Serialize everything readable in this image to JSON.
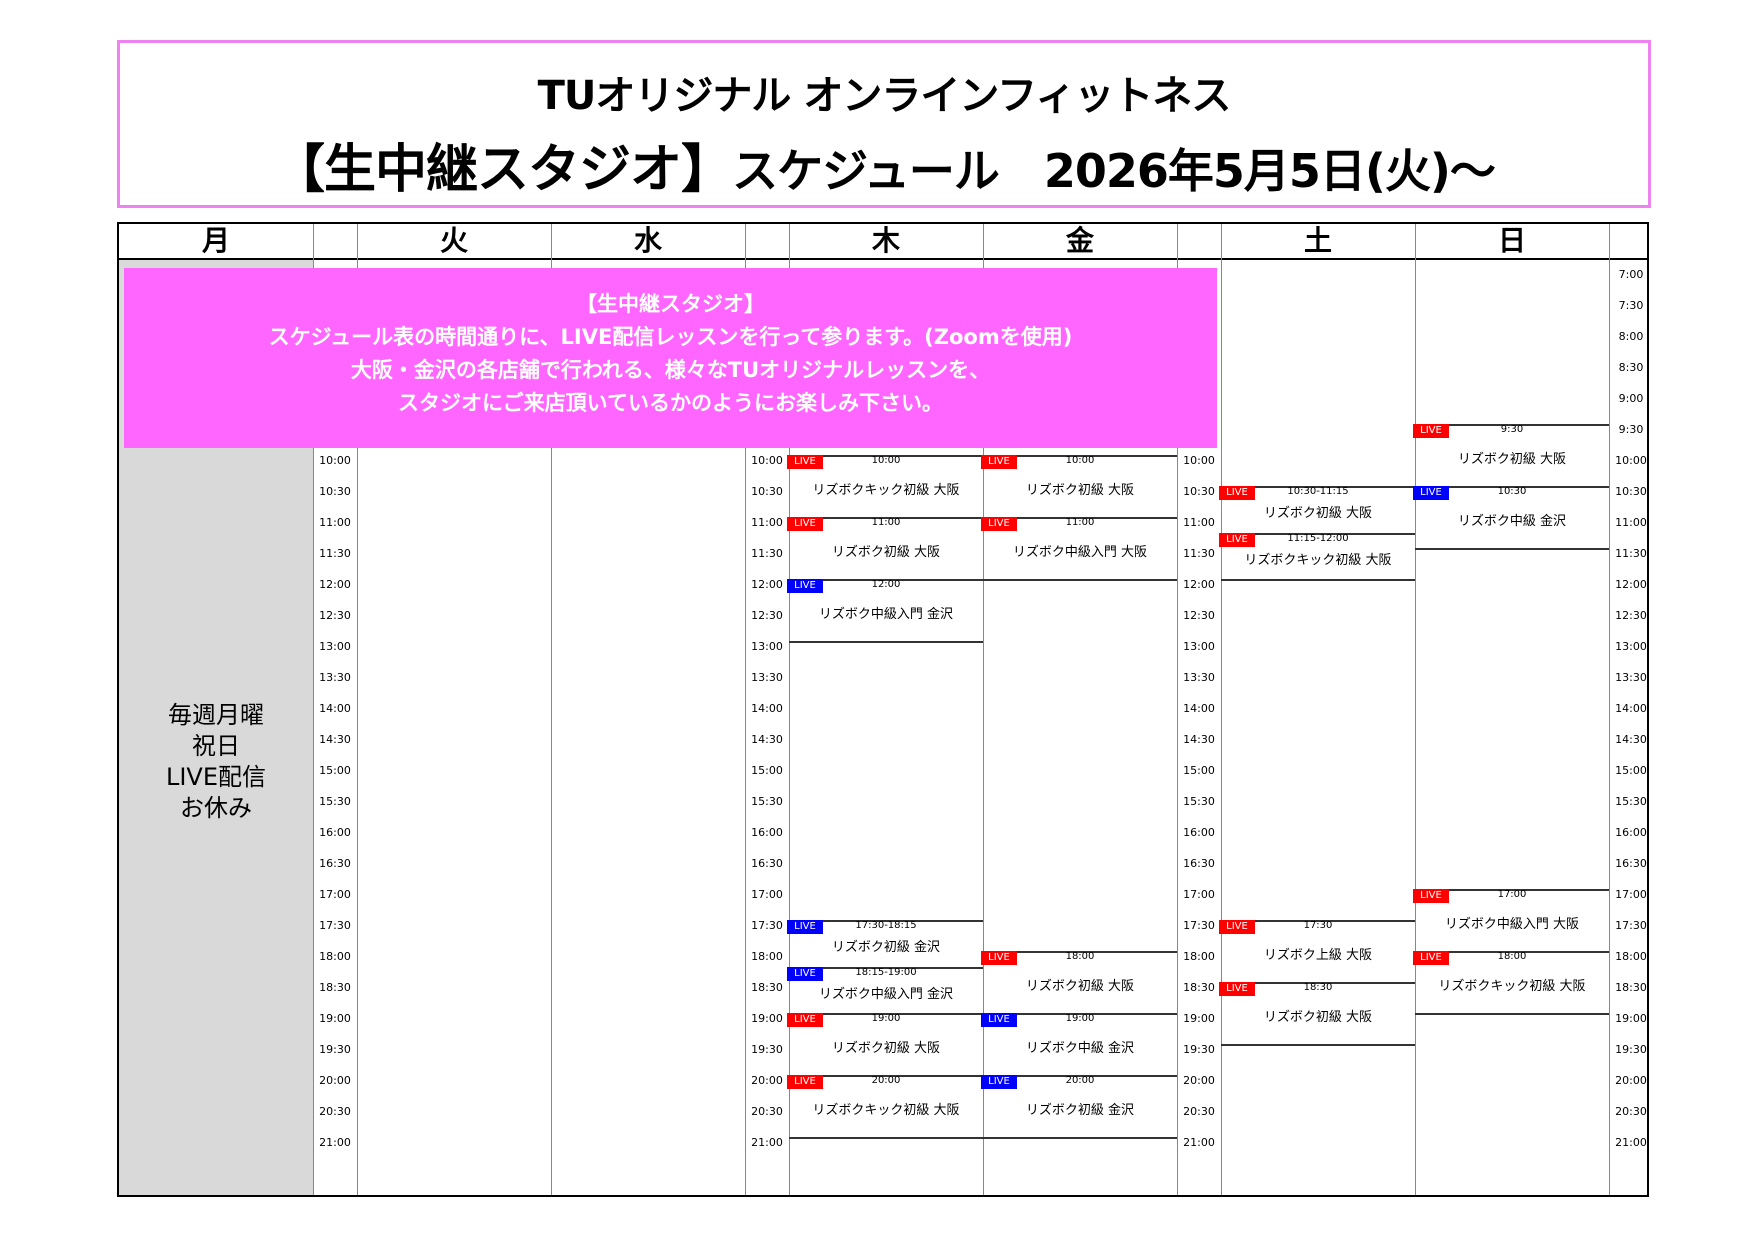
{
  "title": {
    "line1": "TUオリジナル オンラインフィットネス",
    "line2_big": "【生中継スタジオ】",
    "line2_rest": "スケジュール　2026年5月5日(火)～"
  },
  "days": [
    "月",
    "火",
    "水",
    "木",
    "金",
    "土",
    "日"
  ],
  "monday_note": [
    "毎週月曜",
    "祝日",
    "LIVE配信",
    "お休み"
  ],
  "banner": [
    "【生中継スタジオ】",
    "スケジュール表の時間通りに、LIVE配信レッスンを行って参ります。(Zoomを使用)",
    "大阪・金沢の各店舗で行われる、様々なTUオリジナルレッスンを、",
    "スタジオにご来店頂いているかのようにお楽しみ下さい。"
  ],
  "times": [
    "7:00",
    "7:30",
    "8:00",
    "8:30",
    "9:00",
    "9:30",
    "10:00",
    "10:30",
    "11:00",
    "11:30",
    "12:00",
    "12:30",
    "13:00",
    "13:30",
    "14:00",
    "14:30",
    "15:00",
    "15:30",
    "16:00",
    "16:30",
    "17:00",
    "17:30",
    "18:00",
    "18:30",
    "19:00",
    "19:30",
    "20:00",
    "20:30",
    "21:00"
  ],
  "colors": {
    "osaka_live": "#ff0000",
    "kanazawa_live": "#0000ff",
    "banner": "#ff66ff",
    "title_border": "#ee82ee",
    "closed_bg": "#d9d9d9"
  },
  "badge_label": "LIVE",
  "events": [
    {
      "day": "木",
      "start": 10,
      "end": 11,
      "time": "10:00",
      "name": "リズボクキック初級 大阪",
      "color": "red"
    },
    {
      "day": "木",
      "start": 11,
      "end": 12,
      "time": "11:00",
      "name": "リズボク初級 大阪",
      "color": "red"
    },
    {
      "day": "木",
      "start": 12,
      "end": 13,
      "time": "12:00",
      "name": "リズボク中級入門 金沢",
      "color": "blue"
    },
    {
      "day": "木",
      "start": 17.5,
      "end": 18.25,
      "time": "17:30-18:15",
      "name": "リズボク初級 金沢",
      "color": "blue"
    },
    {
      "day": "木",
      "start": 18.25,
      "end": 19,
      "time": "18:15-19:00",
      "name": "リズボク中級入門 金沢",
      "color": "blue"
    },
    {
      "day": "木",
      "start": 19,
      "end": 20,
      "time": "19:00",
      "name": "リズボク初級 大阪",
      "color": "red"
    },
    {
      "day": "木",
      "start": 20,
      "end": 21,
      "time": "20:00",
      "name": "リズボクキック初級 大阪",
      "color": "red"
    },
    {
      "day": "金",
      "start": 10,
      "end": 11,
      "time": "10:00",
      "name": "リズボク初級 大阪",
      "color": "red"
    },
    {
      "day": "金",
      "start": 11,
      "end": 12,
      "time": "11:00",
      "name": "リズボク中級入門 大阪",
      "color": "red"
    },
    {
      "day": "金",
      "start": 18,
      "end": 19,
      "time": "18:00",
      "name": "リズボク初級 大阪",
      "color": "red"
    },
    {
      "day": "金",
      "start": 19,
      "end": 20,
      "time": "19:00",
      "name": "リズボク中級 金沢",
      "color": "blue"
    },
    {
      "day": "金",
      "start": 20,
      "end": 21,
      "time": "20:00",
      "name": "リズボク初級 金沢",
      "color": "blue"
    },
    {
      "day": "土",
      "start": 10.5,
      "end": 11.25,
      "time": "10:30-11:15",
      "name": "リズボク初級 大阪",
      "color": "red"
    },
    {
      "day": "土",
      "start": 11.25,
      "end": 12,
      "time": "11:15-12:00",
      "name": "リズボクキック初級 大阪",
      "color": "red"
    },
    {
      "day": "土",
      "start": 17.5,
      "end": 18.5,
      "time": "17:30",
      "name": "リズボク上級 大阪",
      "color": "red"
    },
    {
      "day": "土",
      "start": 18.5,
      "end": 19.5,
      "time": "18:30",
      "name": "リズボク初級 大阪",
      "color": "red"
    },
    {
      "day": "日",
      "start": 9.5,
      "end": 10.5,
      "time": "9:30",
      "name": "リズボク初級 大阪",
      "color": "red"
    },
    {
      "day": "日",
      "start": 10.5,
      "end": 11.5,
      "time": "10:30",
      "name": "リズボク中級 金沢",
      "color": "blue"
    },
    {
      "day": "日",
      "start": 17,
      "end": 18,
      "time": "17:00",
      "name": "リズボク中級入門 大阪",
      "color": "red"
    },
    {
      "day": "日",
      "start": 18,
      "end": 19,
      "time": "18:00",
      "name": "リズボクキック初級 大阪",
      "color": "red"
    }
  ]
}
